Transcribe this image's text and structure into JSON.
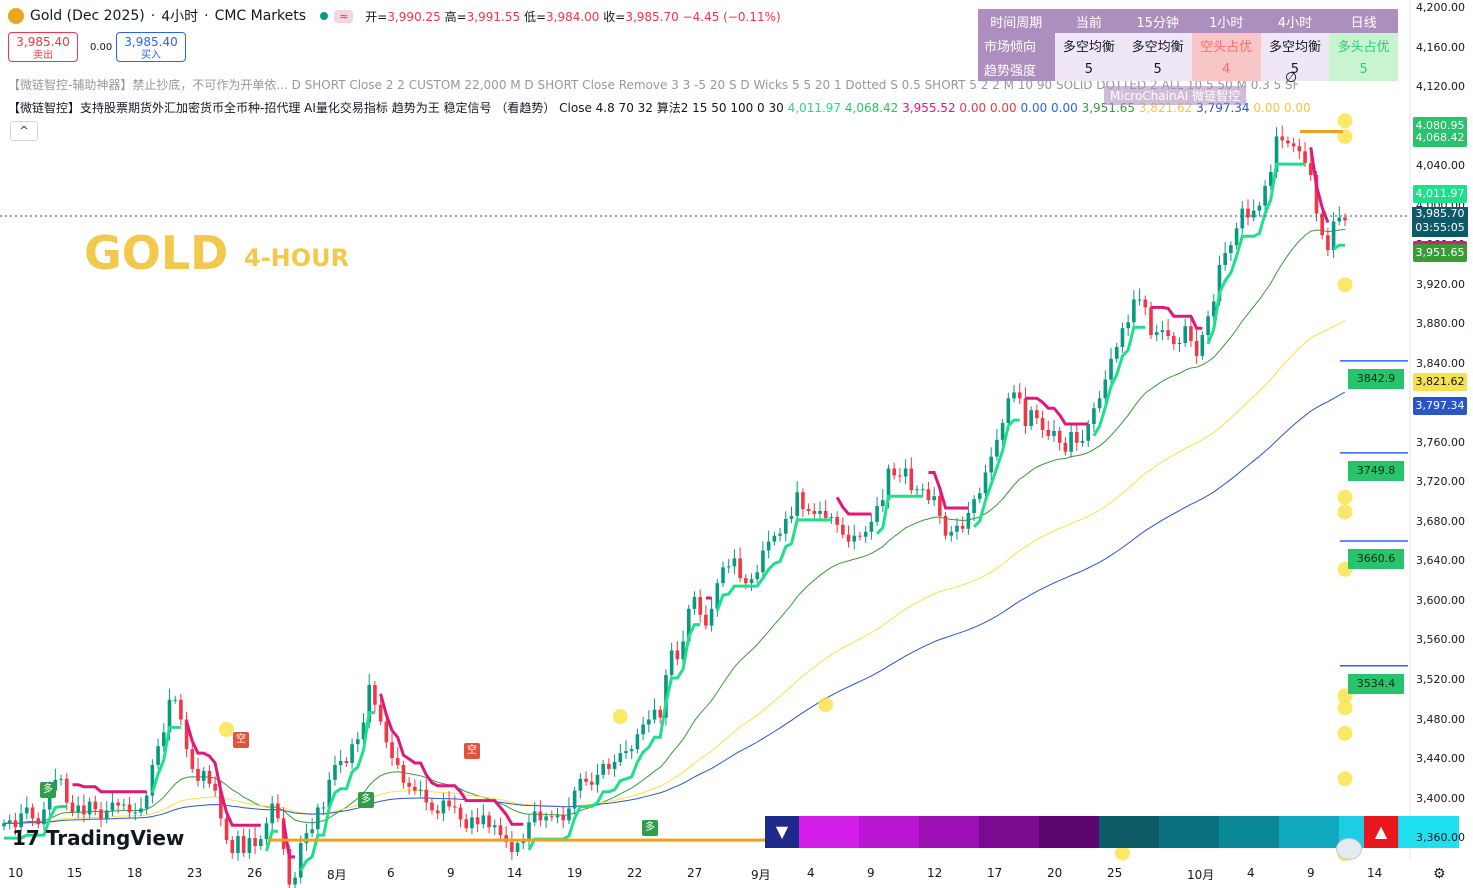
{
  "header": {
    "symbol": "Gold (Dec 2025)",
    "sep1": "·",
    "timeframe": "4小时",
    "sep2": "·",
    "source": "CMC Markets",
    "badge": "≈",
    "open_label": "开=",
    "open": "3,990.25",
    "high_label": "高=",
    "high": "3,991.55",
    "low_label": "低=",
    "low": "3,984.00",
    "close_label": "收=",
    "close": "3,985.70",
    "change": "−4.45 (−0.11%)"
  },
  "trade": {
    "sell_price": "3,985.40",
    "sell_label": "卖出",
    "spread": "0.00",
    "buy_price": "3,985.40",
    "buy_label": "买入"
  },
  "indicator1": "【微链智控-辅助神器】禁止抄底，不可作为开单依... D SHORT Close 2 2 CUSTOM 22,000 M D SHORT Close Remove 3 3 -5 20 S D Wicks 5 5 20 1 Dotted S 0.5 SHORT 5 2 2 M 10 90 SOLID DOTTED 2 ALL 10 5 50 M 0.3 5 SHORT",
  "indicator2": {
    "name": "【微链智控】支持股票期货外汇加密货币全币种-招代理 AI量化交易指标 趋势为王 稳定信号 （看趋势） Close 4.8 70 32 算法2 15 50 100 0 30",
    "v1": "4,011.97",
    "v2": "4,068.42",
    "v3": "3,955.52",
    "v4": "0.00",
    "v5": "0.00",
    "v6": "0.00",
    "v7": "0.00",
    "v8": "3,951.65",
    "v9": "3,821.62",
    "v10": "3,797.34",
    "v11": "0.00",
    "v12": "0.00"
  },
  "collapse_icon": "^",
  "overlay": {
    "title": "GOLD",
    "subtitle": "4-HOUR"
  },
  "table": {
    "headers": [
      "时间周期",
      "当前",
      "15分钟",
      "1小时",
      "4小时",
      "日线"
    ],
    "rows": [
      {
        "label": "市场倾向",
        "cells": [
          "多空均衡",
          "多空均衡",
          "空头占优",
          "多空均衡",
          "多头占优"
        ],
        "kinds": [
          "",
          "",
          "bear",
          "",
          "bull"
        ]
      },
      {
        "label": "趋势强度",
        "cells": [
          "5",
          "5",
          "4",
          "5",
          "5"
        ],
        "kinds": [
          "",
          "",
          "bear",
          "",
          "bull"
        ]
      }
    ]
  },
  "watermark": "MicroChainAI 微链智控",
  "branding": "TradingView",
  "y_axis": {
    "ticks": [
      "4,200.00",
      "4,160.00",
      "4,120.00",
      "4,080.00",
      "4,040.00",
      "4,000.00",
      "3,960.00",
      "3,920.00",
      "3,880.00",
      "3,840.00",
      "3,800.00",
      "3,760.00",
      "3,720.00",
      "3,680.00",
      "3,640.00",
      "3,600.00",
      "3,560.00",
      "3,520.00",
      "3,480.00",
      "3,440.00",
      "3,400.00",
      "3,360.00"
    ],
    "price_labels": [
      {
        "text": "4,080.95",
        "color": "#27c46b"
      },
      {
        "text": "4,068.42",
        "color": "#27c46b"
      },
      {
        "text": "4,011.97",
        "color": "#1ee08a"
      },
      {
        "text": "3,955.52",
        "color": "#e0187a"
      },
      {
        "text": "3,951.65",
        "color": "#3a9a3a"
      },
      {
        "text": "3,821.62",
        "color": "#f5e14a"
      },
      {
        "text": "3,797.34",
        "color": "#2a55c8"
      }
    ],
    "current_price": "3,985.70",
    "countdown": "03:55:05"
  },
  "x_axis": {
    "ticks": [
      {
        "label": "10"
      },
      {
        "label": "15"
      },
      {
        "label": "18"
      },
      {
        "label": "23"
      },
      {
        "label": "26"
      },
      {
        "label": "8月"
      },
      {
        "label": "6"
      },
      {
        "label": "9"
      },
      {
        "label": "14"
      },
      {
        "label": "19"
      },
      {
        "label": "22"
      },
      {
        "label": "27"
      },
      {
        "label": "9月"
      },
      {
        "label": "4"
      },
      {
        "label": "9"
      },
      {
        "label": "12"
      },
      {
        "label": "17"
      },
      {
        "label": "20"
      },
      {
        "label": "25"
      },
      {
        "label": "10月"
      },
      {
        "label": "4"
      },
      {
        "label": "9"
      },
      {
        "label": "14"
      }
    ]
  },
  "sr_levels": [
    {
      "label": "3842.9",
      "value": 3842.9
    },
    {
      "label": "3749.8",
      "value": 3749.8
    },
    {
      "label": "3660.6",
      "value": 3660.6
    },
    {
      "label": "3534.4",
      "value": 3534.4
    }
  ],
  "signals": [
    {
      "text": "多",
      "type": "buy"
    },
    {
      "text": "空",
      "type": "sell"
    },
    {
      "text": "多",
      "type": "buy"
    },
    {
      "text": "空",
      "type": "sell"
    },
    {
      "text": "多",
      "type": "buy"
    }
  ],
  "buttons": {
    "bear": "▼",
    "bull": "▲",
    "settings": "⚙",
    "visibility": "∅"
  },
  "chart_data": {
    "type": "line",
    "title": "Gold (Dec 2025) · 4小时",
    "ylim": [
      3340,
      4210
    ],
    "series": [
      {
        "name": "",
        "y": [
          3375,
          3378,
          3371,
          3385,
          3391,
          3380,
          3374,
          3389,
          3408,
          3419,
          3420,
          3396,
          3386,
          3393,
          3384,
          3397,
          3389,
          3379,
          3388,
          3396,
          3393,
          3394,
          3386,
          3386,
          3390,
          3403,
          3434,
          3453,
          3467,
          3500,
          3500,
          3480,
          3450,
          3430,
          3418,
          3428,
          3415,
          3408,
          3380,
          3358,
          3345,
          3362,
          3345,
          3360,
          3352,
          3359,
          3375,
          3395,
          3380,
          3349,
          3313,
          3320,
          3355,
          3365,
          3369,
          3391,
          3391,
          3419,
          3434,
          3438,
          3436,
          3455,
          3460,
          3477,
          3515,
          3495,
          3478,
          3457,
          3441,
          3434,
          3416,
          3412,
          3408,
          3409,
          3396,
          3388,
          3385,
          3398,
          3392,
          3391,
          3379,
          3370,
          3381,
          3374,
          3383,
          3371,
          3373,
          3363,
          3356,
          3346,
          3355,
          3359,
          3376,
          3387,
          3378,
          3382,
          3381,
          3383,
          3378,
          3390,
          3408,
          3420,
          3417,
          3414,
          3424,
          3435,
          3430,
          3437,
          3446,
          3448,
          3450,
          3465,
          3475,
          3480,
          3490,
          3482,
          3525,
          3550,
          3541,
          3559,
          3592,
          3604,
          3586,
          3575,
          3592,
          3618,
          3634,
          3635,
          3643,
          3623,
          3618,
          3622,
          3629,
          3651,
          3660,
          3666,
          3668,
          3683,
          3686,
          3710,
          3693,
          3691,
          3688,
          3691,
          3684,
          3685,
          3677,
          3667,
          3660,
          3666,
          3665,
          3670,
          3680,
          3696,
          3702,
          3734,
          3727,
          3726,
          3734,
          3712,
          3713,
          3713,
          3702,
          3706,
          3686,
          3666,
          3670,
          3676,
          3673,
          3689,
          3703,
          3709,
          3730,
          3746,
          3763,
          3780,
          3805,
          3811,
          3805,
          3777,
          3793,
          3785,
          3773,
          3767,
          3772,
          3760,
          3751,
          3771,
          3760,
          3762,
          3779,
          3795,
          3805,
          3824,
          3845,
          3857,
          3876,
          3882,
          3905,
          3905,
          3897,
          3869,
          3872,
          3874,
          3868,
          3860,
          3861,
          3878,
          3863,
          3848,
          3869,
          3888,
          3903,
          3940,
          3952,
          3960,
          3977,
          3997,
          3988,
          3995,
          4000,
          4020,
          4034,
          4070,
          4066,
          4063,
          4060,
          4055,
          4043,
          4031,
          3992,
          3970,
          3955,
          3984,
          3988,
          3985
        ],
        "color": "candles"
      },
      {
        "name": "",
        "y": [
          3800,
          3860,
          3890,
          3960,
          4012
        ],
        "color": "#1ee08a"
      },
      {
        "name": "",
        "y": [
          3800,
          3850,
          3900,
          3955
        ],
        "color": "#3a9a3a"
      },
      {
        "name": "",
        "y": [
          3700,
          3760,
          3800,
          3821.62
        ],
        "color": "#f5e14a"
      },
      {
        "name": "",
        "y": [
          3690,
          3740,
          3780,
          3797.34
        ],
        "color": "#2a55c8"
      }
    ]
  }
}
